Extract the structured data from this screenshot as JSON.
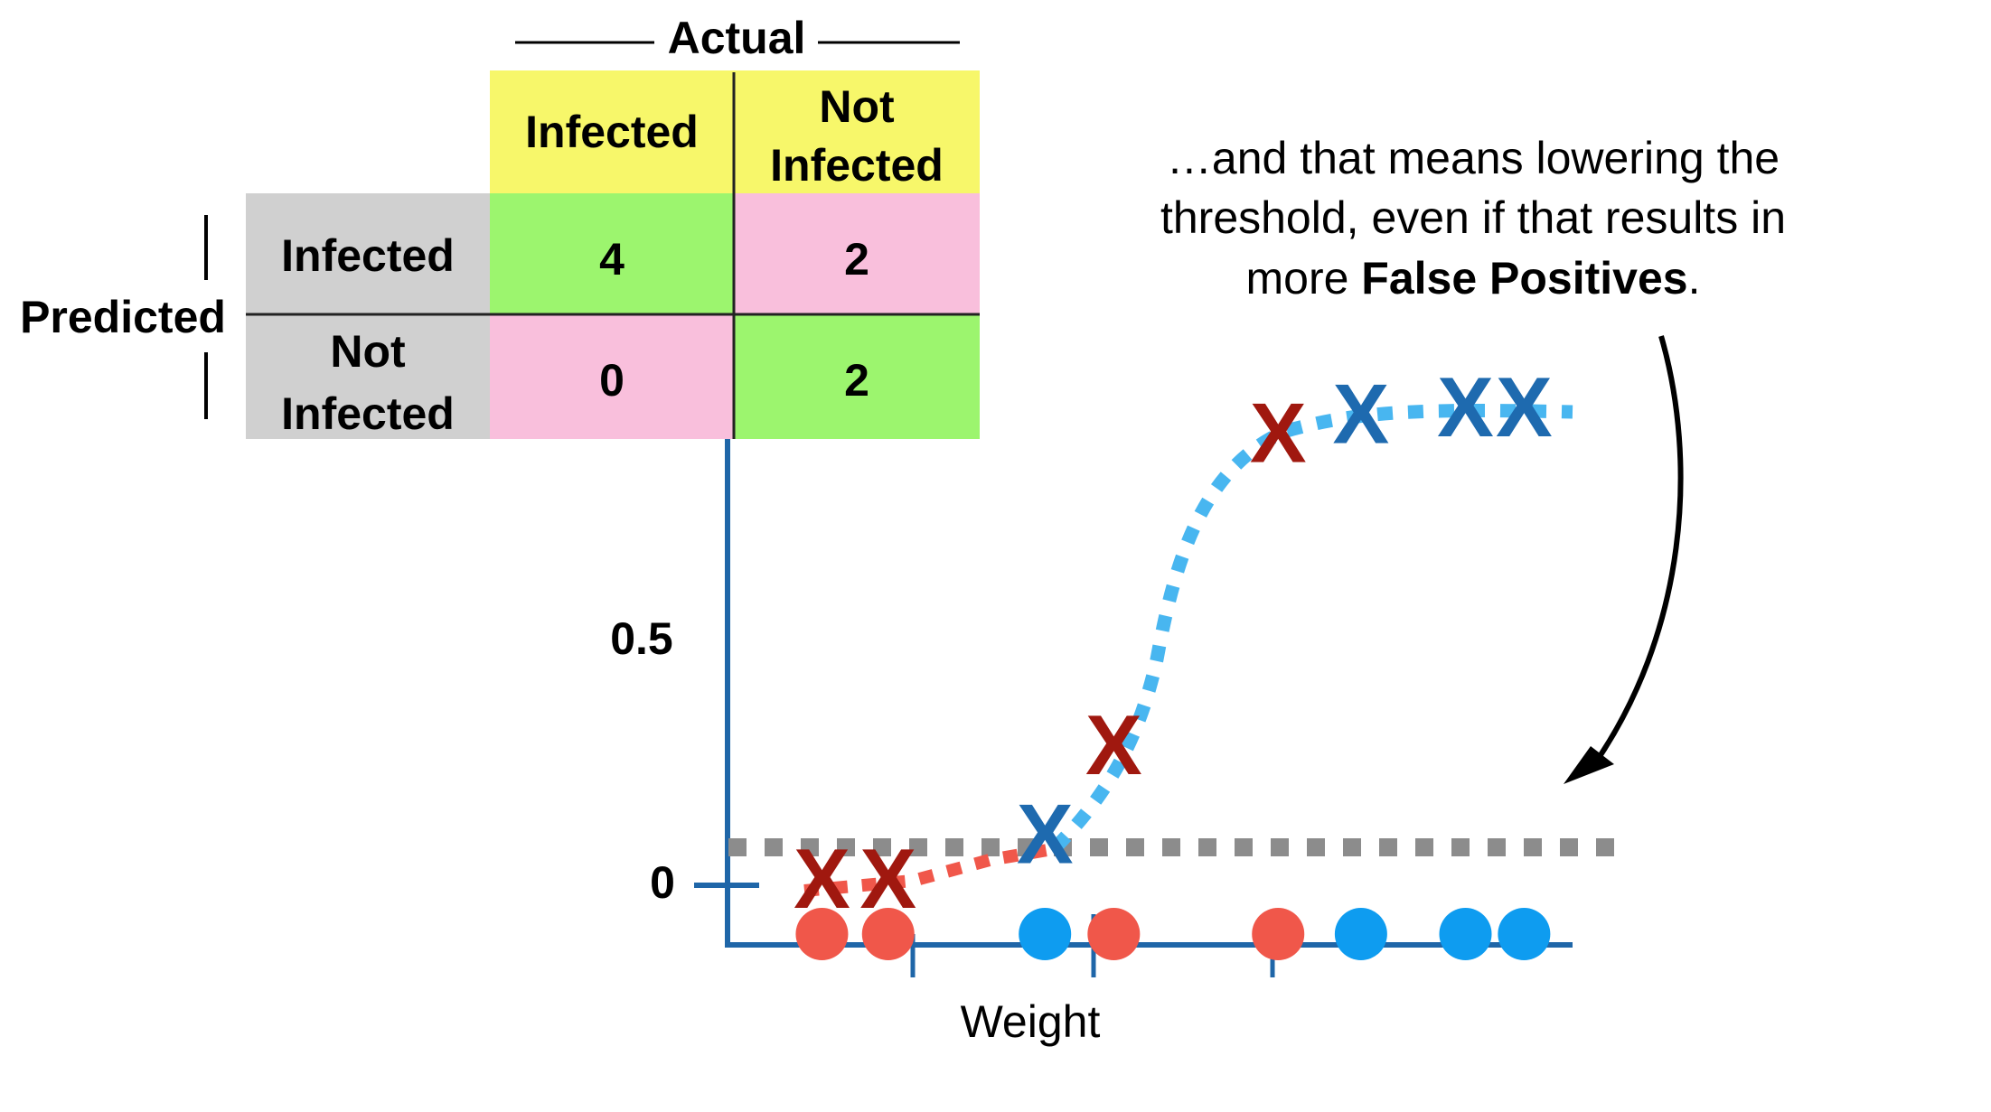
{
  "confusion_matrix": {
    "actual_label": "Actual",
    "predicted_label": "Predicted",
    "col_headers": [
      {
        "line1": "Infected",
        "line2": ""
      },
      {
        "line1": "Not",
        "line2": "Infected"
      }
    ],
    "row_headers": [
      {
        "line1": "Infected",
        "line2": ""
      },
      {
        "line1": "Not",
        "line2": "Infected"
      }
    ],
    "cells": [
      [
        "4",
        "2"
      ],
      [
        "0",
        "2"
      ]
    ],
    "colors": {
      "header_yellow": "#f7f76a",
      "row_gray": "#d0d0d0",
      "correct_green": "#9cf56e",
      "wrong_pink": "#f9bfdc"
    }
  },
  "annotation": {
    "line1": "…and that means lowering the",
    "line2": "threshold, even if that results in",
    "line3_pre": "more ",
    "line3_bold": "False Positives",
    "line3_post": "."
  },
  "plot": {
    "y_tick_labels": [
      "0.5",
      "0"
    ],
    "x_axis_label": "Weight",
    "colors": {
      "axis": "#1f66a8",
      "infected_red": "#f0574a",
      "not_infected_blue": "#0e9cf0",
      "x_red": "#a0180f",
      "x_blue": "#1e6aaf",
      "curve_blue": "#48b6f0",
      "curve_red": "#f0574a",
      "threshold_gray": "#8c8c8c"
    },
    "x_marker_glyph": "X",
    "samples": [
      {
        "class": "infected",
        "probability": 0.0
      },
      {
        "class": "infected",
        "probability": 0.0
      },
      {
        "class": "not_infected",
        "probability": 0.1
      },
      {
        "class": "infected",
        "probability": 0.32
      },
      {
        "class": "infected",
        "probability": 1.05
      },
      {
        "class": "not_infected",
        "probability": 1.1
      },
      {
        "class": "not_infected",
        "probability": 1.1
      },
      {
        "class": "not_infected",
        "probability": 1.1
      }
    ],
    "threshold": 0.08
  }
}
